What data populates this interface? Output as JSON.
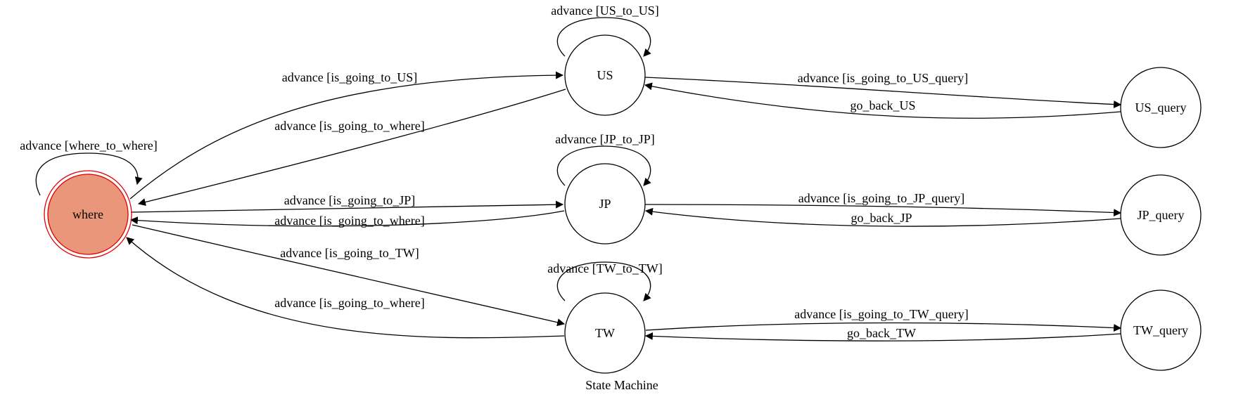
{
  "diagram": {
    "caption": "State Machine",
    "colors": {
      "initial_fill": "#e9967a",
      "initial_stroke": "#e00000",
      "stroke": "#000000",
      "background": "#ffffff"
    },
    "nodes": [
      {
        "id": "where",
        "label": "where",
        "initial": true
      },
      {
        "id": "US",
        "label": "US"
      },
      {
        "id": "JP",
        "label": "JP"
      },
      {
        "id": "TW",
        "label": "TW"
      },
      {
        "id": "US_query",
        "label": "US_query"
      },
      {
        "id": "JP_query",
        "label": "JP_query"
      },
      {
        "id": "TW_query",
        "label": "TW_query"
      }
    ],
    "edges": [
      {
        "id": "where-where",
        "from": "where",
        "to": "where",
        "label": "advance [where_to_where]"
      },
      {
        "id": "where-US",
        "from": "where",
        "to": "US",
        "label": "advance [is_going_to_US]"
      },
      {
        "id": "US-where",
        "from": "US",
        "to": "where",
        "label": "advance [is_going_to_where]"
      },
      {
        "id": "US-US",
        "from": "US",
        "to": "US",
        "label": "advance [US_to_US]"
      },
      {
        "id": "US-US_query",
        "from": "US",
        "to": "US_query",
        "label": "advance [is_going_to_US_query]"
      },
      {
        "id": "US_query-US",
        "from": "US_query",
        "to": "US",
        "label": "go_back_US"
      },
      {
        "id": "JP-JP",
        "from": "JP",
        "to": "JP",
        "label": "advance [JP_to_JP]"
      },
      {
        "id": "where-JP",
        "from": "where",
        "to": "JP",
        "label": "advance [is_going_to_JP]"
      },
      {
        "id": "JP-where",
        "from": "JP",
        "to": "where",
        "label": "advance [is_going_to_where]"
      },
      {
        "id": "JP-JP_query",
        "from": "JP",
        "to": "JP_query",
        "label": "advance [is_going_to_JP_query]"
      },
      {
        "id": "JP_query-JP",
        "from": "JP_query",
        "to": "JP",
        "label": "go_back_JP"
      },
      {
        "id": "where-TW",
        "from": "where",
        "to": "TW",
        "label": "advance [is_going_to_TW]"
      },
      {
        "id": "TW-where",
        "from": "TW",
        "to": "where",
        "label": "advance [is_going_to_where]"
      },
      {
        "id": "TW-TW",
        "from": "TW",
        "to": "TW",
        "label": "advance [TW_to_TW]"
      },
      {
        "id": "TW-TW_query",
        "from": "TW",
        "to": "TW_query",
        "label": "advance [is_going_to_TW_query]"
      },
      {
        "id": "TW_query-TW",
        "from": "TW_query",
        "to": "TW",
        "label": "go_back_TW"
      }
    ]
  }
}
